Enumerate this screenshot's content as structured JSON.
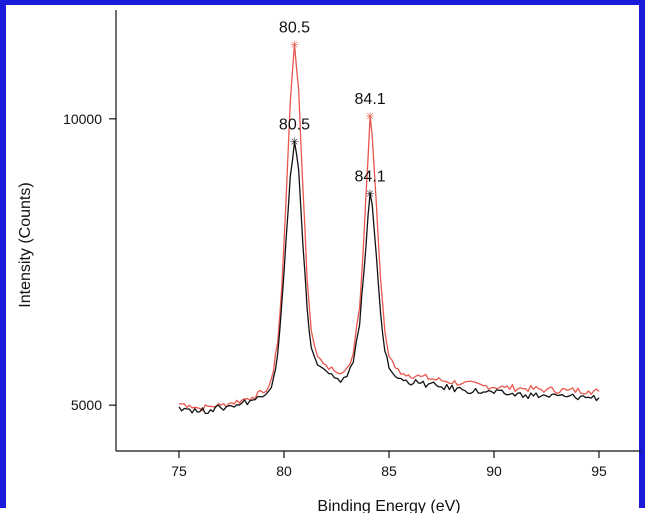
{
  "colors": {
    "frame": "#1a1adb",
    "series_red": "#e8574e",
    "series_black": "#111111",
    "axis": "#111111"
  },
  "chart_data": {
    "type": "line",
    "title": "",
    "xlabel": "Binding Energy (eV)",
    "ylabel": "Intensity (Counts)",
    "xlim": [
      72,
      97
    ],
    "ylim": [
      4200,
      11900
    ],
    "x_ticks": [
      75,
      80,
      85,
      90,
      95
    ],
    "y_ticks": [
      5000,
      10000
    ],
    "grid": false,
    "series": [
      {
        "color": "#e8574e",
        "points": [
          [
            75.0,
            5030
          ],
          [
            75.5,
            5000
          ],
          [
            76.0,
            4940
          ],
          [
            76.5,
            4980
          ],
          [
            77.0,
            5000
          ],
          [
            77.5,
            5040
          ],
          [
            78.0,
            5090
          ],
          [
            78.5,
            5140
          ],
          [
            79.0,
            5220
          ],
          [
            79.3,
            5350
          ],
          [
            79.5,
            5600
          ],
          [
            79.7,
            6100
          ],
          [
            79.9,
            7100
          ],
          [
            80.1,
            8600
          ],
          [
            80.3,
            10300
          ],
          [
            80.5,
            11300
          ],
          [
            80.7,
            10500
          ],
          [
            80.9,
            8800
          ],
          [
            81.1,
            7200
          ],
          [
            81.3,
            6300
          ],
          [
            81.6,
            5850
          ],
          [
            82.0,
            5700
          ],
          [
            82.4,
            5600
          ],
          [
            82.7,
            5550
          ],
          [
            83.0,
            5650
          ],
          [
            83.3,
            5900
          ],
          [
            83.6,
            6700
          ],
          [
            83.8,
            7900
          ],
          [
            84.0,
            9300
          ],
          [
            84.1,
            10050
          ],
          [
            84.2,
            9700
          ],
          [
            84.4,
            8500
          ],
          [
            84.6,
            7200
          ],
          [
            84.8,
            6300
          ],
          [
            85.0,
            5850
          ],
          [
            85.3,
            5650
          ],
          [
            85.7,
            5550
          ],
          [
            86.5,
            5500
          ],
          [
            87.5,
            5430
          ],
          [
            88.5,
            5380
          ],
          [
            89.5,
            5340
          ],
          [
            90.5,
            5310
          ],
          [
            91.5,
            5290
          ],
          [
            92.5,
            5270
          ],
          [
            93.5,
            5260
          ],
          [
            94.5,
            5250
          ],
          [
            95.0,
            5240
          ]
        ]
      },
      {
        "color": "#111111",
        "points": [
          [
            75.0,
            4970
          ],
          [
            75.5,
            4930
          ],
          [
            76.0,
            4890
          ],
          [
            76.5,
            4920
          ],
          [
            77.0,
            4950
          ],
          [
            77.5,
            4990
          ],
          [
            78.0,
            5040
          ],
          [
            78.5,
            5090
          ],
          [
            79.0,
            5150
          ],
          [
            79.3,
            5260
          ],
          [
            79.5,
            5480
          ],
          [
            79.7,
            5900
          ],
          [
            79.9,
            6800
          ],
          [
            80.1,
            7900
          ],
          [
            80.3,
            9000
          ],
          [
            80.5,
            9600
          ],
          [
            80.7,
            9100
          ],
          [
            80.9,
            7800
          ],
          [
            81.1,
            6700
          ],
          [
            81.3,
            6000
          ],
          [
            81.6,
            5700
          ],
          [
            82.0,
            5600
          ],
          [
            82.4,
            5480
          ],
          [
            82.7,
            5400
          ],
          [
            83.0,
            5500
          ],
          [
            83.3,
            5750
          ],
          [
            83.6,
            6400
          ],
          [
            83.8,
            7300
          ],
          [
            84.0,
            8300
          ],
          [
            84.1,
            8700
          ],
          [
            84.2,
            8500
          ],
          [
            84.4,
            7600
          ],
          [
            84.6,
            6600
          ],
          [
            84.8,
            5950
          ],
          [
            85.0,
            5650
          ],
          [
            85.3,
            5500
          ],
          [
            85.7,
            5430
          ],
          [
            86.5,
            5380
          ],
          [
            87.5,
            5320
          ],
          [
            88.5,
            5270
          ],
          [
            89.5,
            5230
          ],
          [
            90.5,
            5200
          ],
          [
            91.5,
            5180
          ],
          [
            92.5,
            5160
          ],
          [
            93.5,
            5150
          ],
          [
            94.5,
            5140
          ],
          [
            95.0,
            5130
          ]
        ]
      }
    ],
    "annotations": [
      {
        "text": "80.5",
        "x": 80.5,
        "y": 11300,
        "color": "#e8574e"
      },
      {
        "text": "80.5",
        "x": 80.5,
        "y": 9600,
        "color": "#111111"
      },
      {
        "text": "84.1",
        "x": 84.1,
        "y": 10050,
        "color": "#e8574e"
      },
      {
        "text": "84.1",
        "x": 84.1,
        "y": 8700,
        "color": "#111111"
      }
    ]
  }
}
